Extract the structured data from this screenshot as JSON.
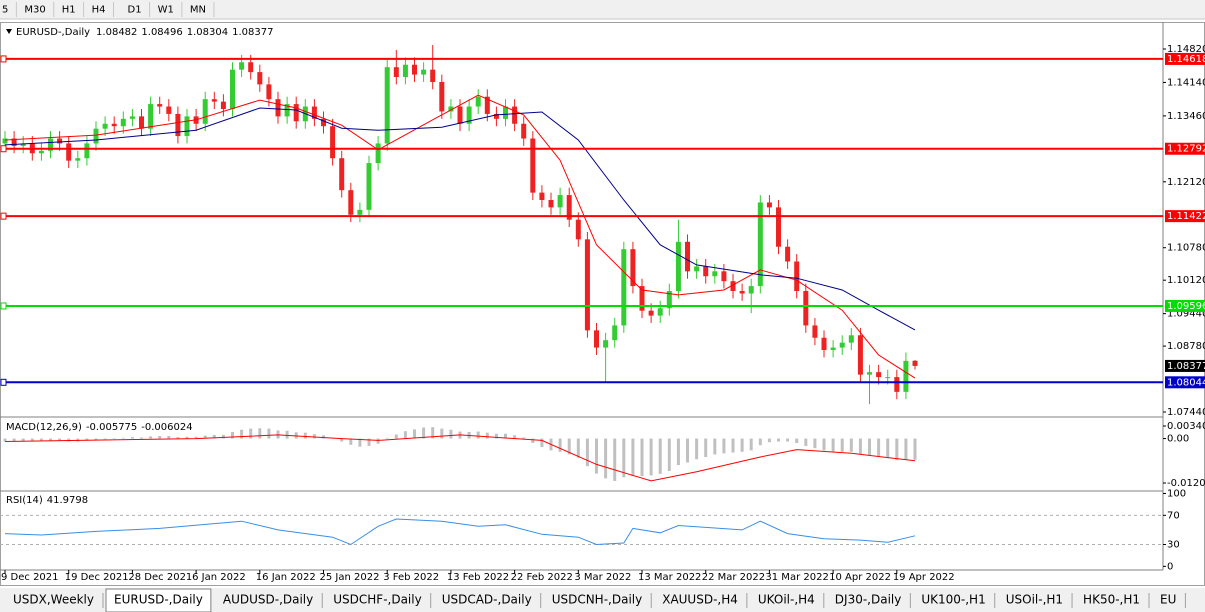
{
  "toolbar": {
    "timeframes": [
      "5",
      "M30",
      "H1",
      "H4",
      "D1",
      "W1",
      "MN"
    ]
  },
  "chart_data": [
    {
      "type": "candlestick",
      "symbol": "EURUSD-,Daily",
      "xlim": [
        -0.55,
        127.25
      ],
      "xticks": [
        {
          "value": 0,
          "label": "9 Dec 2021"
        },
        {
          "value": 7,
          "label": "19 Dec 2021"
        },
        {
          "value": 14,
          "label": "28 Dec 2021"
        },
        {
          "value": 21,
          "label": "6 Jan 2022"
        },
        {
          "value": 28,
          "label": "16 Jan 2022"
        },
        {
          "value": 35,
          "label": "25 Jan 2022"
        },
        {
          "value": 42,
          "label": "3 Feb 2022"
        },
        {
          "value": 49,
          "label": "13 Feb 2022"
        },
        {
          "value": 56,
          "label": "22 Feb 2022"
        },
        {
          "value": 63,
          "label": "3 Mar 2022"
        },
        {
          "value": 70,
          "label": "13 Mar 2022"
        },
        {
          "value": 77,
          "label": "22 Mar 2022"
        },
        {
          "value": 84,
          "label": "31 Mar 2022"
        },
        {
          "value": 91,
          "label": "10 Apr 2022"
        },
        {
          "value": 98,
          "label": "19 Apr 2022"
        }
      ],
      "ylim": [
        1.07359,
        1.15328
      ],
      "yticks": [
        {
          "value": 1.1482,
          "label": "1.14820"
        },
        {
          "value": 1.1414,
          "label": "1.14140"
        },
        {
          "value": 1.1346,
          "label": "1.13460"
        },
        {
          "value": 1.1212,
          "label": "1.12120"
        },
        {
          "value": 1.1078,
          "label": "1.10780"
        },
        {
          "value": 1.1012,
          "label": "1.10120"
        },
        {
          "value": 1.0944,
          "label": "1.09440"
        },
        {
          "value": 1.0878,
          "label": "1.08780"
        },
        {
          "value": 1.0744,
          "label": "1.07440"
        }
      ],
      "up_color": "#33cc33",
      "down_color": "#ee2222",
      "open": [
        1.129,
        1.13,
        1.1285,
        1.129,
        1.127,
        1.1275,
        1.13,
        1.129,
        1.1255,
        1.126,
        1.129,
        1.132,
        1.133,
        1.1325,
        1.134,
        1.1345,
        1.132,
        1.137,
        1.1365,
        1.135,
        1.1305,
        1.1345,
        1.133,
        1.138,
        1.1375,
        1.136,
        1.144,
        1.1455,
        1.1435,
        1.141,
        1.138,
        1.1345,
        1.137,
        1.1335,
        1.1365,
        1.134,
        1.1325,
        1.126,
        1.1195,
        1.1145,
        1.1155,
        1.125,
        1.129,
        1.1445,
        1.1425,
        1.145,
        1.143,
        1.144,
        1.1415,
        1.1355,
        1.1365,
        1.133,
        1.1365,
        1.1385,
        1.135,
        1.134,
        1.1365,
        1.133,
        1.13,
        1.119,
        1.1175,
        1.116,
        1.1185,
        1.1135,
        1.1095,
        1.091,
        1.0875,
        1.089,
        1.092,
        1.1075,
        1.1,
        1.095,
        1.094,
        1.0955,
        1.099,
        1.109,
        1.103,
        1.104,
        1.102,
        1.103,
        1.101,
        1.099,
        1.0985,
        1.1,
        1.117,
        1.116,
        1.108,
        1.105,
        1.099,
        1.092,
        1.0895,
        1.087,
        1.0875,
        1.0885,
        1.09,
        1.082,
        1.0825,
        1.0815,
        1.0815,
        1.0785,
        1.08482
      ],
      "high": [
        1.1315,
        1.1315,
        1.1305,
        1.1305,
        1.129,
        1.1315,
        1.1315,
        1.1305,
        1.1275,
        1.1305,
        1.1335,
        1.1345,
        1.1345,
        1.1355,
        1.136,
        1.136,
        1.1385,
        1.1385,
        1.138,
        1.1365,
        1.136,
        1.136,
        1.1395,
        1.1395,
        1.139,
        1.1455,
        1.147,
        1.147,
        1.145,
        1.1425,
        1.1395,
        1.1385,
        1.1385,
        1.138,
        1.138,
        1.1355,
        1.134,
        1.1275,
        1.121,
        1.117,
        1.1265,
        1.1305,
        1.146,
        1.148,
        1.1465,
        1.1465,
        1.1455,
        1.149,
        1.143,
        1.138,
        1.138,
        1.138,
        1.14,
        1.14,
        1.1365,
        1.138,
        1.138,
        1.1345,
        1.1315,
        1.1205,
        1.119,
        1.12,
        1.12,
        1.115,
        1.111,
        1.0925,
        1.0905,
        1.0935,
        1.109,
        1.109,
        1.1015,
        1.0965,
        1.097,
        1.1005,
        1.1135,
        1.1105,
        1.1055,
        1.1055,
        1.1045,
        1.1045,
        1.1025,
        1.1005,
        1.1015,
        1.1185,
        1.1185,
        1.1175,
        1.1095,
        1.1065,
        1.1005,
        1.0935,
        1.091,
        1.089,
        1.09,
        1.0915,
        1.0915,
        1.084,
        1.084,
        1.083,
        1.083,
        1.0865,
        1.08496
      ],
      "low": [
        1.1275,
        1.127,
        1.127,
        1.1255,
        1.1255,
        1.126,
        1.1275,
        1.124,
        1.124,
        1.1245,
        1.1275,
        1.1305,
        1.131,
        1.131,
        1.1325,
        1.1305,
        1.1305,
        1.135,
        1.1335,
        1.129,
        1.129,
        1.1315,
        1.1315,
        1.136,
        1.1345,
        1.1345,
        1.1425,
        1.142,
        1.1395,
        1.1365,
        1.133,
        1.133,
        1.132,
        1.132,
        1.1325,
        1.131,
        1.1245,
        1.118,
        1.113,
        1.113,
        1.114,
        1.1235,
        1.1275,
        1.141,
        1.141,
        1.1415,
        1.1415,
        1.14,
        1.134,
        1.134,
        1.1315,
        1.1315,
        1.135,
        1.1335,
        1.1325,
        1.1325,
        1.1315,
        1.1285,
        1.1175,
        1.116,
        1.1145,
        1.1145,
        1.112,
        1.108,
        1.0895,
        1.086,
        1.0805,
        1.0875,
        1.0905,
        1.0985,
        1.0935,
        1.0925,
        1.0925,
        1.094,
        1.0975,
        1.1015,
        1.1015,
        1.1005,
        1.1005,
        1.0995,
        1.0975,
        1.097,
        1.0945,
        1.0985,
        1.1145,
        1.1065,
        1.1035,
        1.0975,
        1.0905,
        1.088,
        1.0855,
        1.0855,
        1.086,
        1.087,
        1.0805,
        1.076,
        1.08,
        1.08,
        1.077,
        1.077,
        1.08304
      ],
      "close": [
        1.13,
        1.1285,
        1.129,
        1.127,
        1.1275,
        1.13,
        1.129,
        1.1255,
        1.126,
        1.129,
        1.132,
        1.133,
        1.1325,
        1.134,
        1.1345,
        1.132,
        1.137,
        1.1365,
        1.135,
        1.1305,
        1.1345,
        1.133,
        1.138,
        1.1375,
        1.136,
        1.144,
        1.1455,
        1.1435,
        1.141,
        1.138,
        1.1345,
        1.137,
        1.1335,
        1.1365,
        1.134,
        1.1325,
        1.126,
        1.1195,
        1.1145,
        1.1155,
        1.125,
        1.129,
        1.1445,
        1.1425,
        1.145,
        1.143,
        1.144,
        1.1415,
        1.1355,
        1.1365,
        1.133,
        1.1365,
        1.1385,
        1.135,
        1.134,
        1.1365,
        1.133,
        1.13,
        1.119,
        1.1175,
        1.116,
        1.1185,
        1.1135,
        1.1095,
        1.091,
        1.0875,
        1.089,
        1.092,
        1.1075,
        1.1,
        1.095,
        1.094,
        1.0955,
        1.099,
        1.109,
        1.103,
        1.104,
        1.102,
        1.103,
        1.101,
        1.099,
        1.0985,
        1.1,
        1.117,
        1.116,
        1.108,
        1.105,
        1.099,
        1.092,
        1.0895,
        1.087,
        1.0875,
        1.0885,
        1.09,
        1.082,
        1.0825,
        1.0815,
        1.0815,
        1.0785,
        1.0848,
        1.08377
      ],
      "levels": [
        {
          "value": 1.14618,
          "color": "#ff0000"
        },
        {
          "value": 1.12792,
          "color": "#ff0000"
        },
        {
          "value": 1.11422,
          "color": "#ff0000"
        },
        {
          "value": 1.09596,
          "color": "#00dd00"
        },
        {
          "value": 1.08044,
          "color": "#0000cc"
        }
      ],
      "moving_averages": [
        {
          "color": "#ff0000",
          "x": [
            0,
            10,
            21,
            28,
            32,
            37,
            41,
            47,
            52,
            57,
            61,
            65,
            70,
            74,
            79,
            83,
            87,
            92,
            96,
            100
          ],
          "values": [
            1.1297,
            1.1307,
            1.1338,
            1.1378,
            1.1362,
            1.1327,
            1.1277,
            1.1338,
            1.1388,
            1.1348,
            1.1256,
            1.1084,
            1.0992,
            1.0982,
            1.0992,
            1.1033,
            1.1012,
            1.0951,
            1.086,
            1.0813
          ]
        },
        {
          "color": "#00008b",
          "x": [
            0,
            10,
            21,
            28,
            32,
            37,
            41,
            48,
            54,
            59,
            63,
            68,
            72,
            76,
            83,
            87,
            92,
            96,
            100
          ],
          "values": [
            1.1287,
            1.1297,
            1.1317,
            1.1362,
            1.1358,
            1.1321,
            1.1317,
            1.1323,
            1.1348,
            1.1354,
            1.1297,
            1.1175,
            1.1084,
            1.1043,
            1.1023,
            1.1016,
            1.0992,
            1.0951,
            1.0911
          ]
        }
      ]
    },
    {
      "type": "macd",
      "name": "MACD(12,26,9)",
      "ylim": [
        -0.01396,
        0.00558
      ],
      "yticks": [
        0.003408,
        {
          "value": 0,
          "label": "0.00"
        },
        -0.012058
      ],
      "color": "#c0c0c0",
      "values": [
        -0.0008,
        -0.0008,
        -0.0007,
        -0.0008,
        -0.0007,
        -0.0006,
        -0.0006,
        -0.0008,
        -0.0008,
        -0.0006,
        -0.0004,
        -0.0002,
        -0.0001,
        0.0002,
        0.0004,
        0.0003,
        0.0006,
        0.0007,
        0.0007,
        0.0004,
        0.0005,
        0.0005,
        0.0008,
        0.001,
        0.001,
        0.0018,
        0.0024,
        0.0027,
        0.0028,
        0.0027,
        0.0022,
        0.0021,
        0.0017,
        0.0016,
        0.0012,
        0.0009,
        0.0002,
        -0.0008,
        -0.0017,
        -0.0022,
        -0.002,
        -0.0014,
        0.0002,
        0.0011,
        0.002,
        0.0025,
        0.003,
        0.0031,
        0.0027,
        0.0024,
        0.0019,
        0.0018,
        0.0019,
        0.0016,
        0.0013,
        0.0013,
        0.0009,
        0.0003,
        -0.0012,
        -0.0023,
        -0.0032,
        -0.0036,
        -0.0043,
        -0.0052,
        -0.0075,
        -0.0095,
        -0.0108,
        -0.0115,
        -0.0105,
        -0.0102,
        -0.0102,
        -0.01,
        -0.0096,
        -0.0088,
        -0.0072,
        -0.0065,
        -0.0056,
        -0.005,
        -0.0043,
        -0.004,
        -0.0038,
        -0.0036,
        -0.0032,
        -0.0018,
        -0.001,
        -0.0008,
        -0.0008,
        -0.0012,
        -0.002,
        -0.0026,
        -0.0032,
        -0.0035,
        -0.0036,
        -0.0036,
        -0.0042,
        -0.0046,
        -0.005,
        -0.0053,
        -0.0058,
        -0.0058,
        -0.005775
      ],
      "signal": {
        "color": "#ff0000",
        "x": [
          0,
          21,
          30,
          37,
          41,
          50,
          59,
          65,
          71,
          76,
          83,
          87,
          93,
          100
        ],
        "values": [
          -0.0008,
          0.0,
          0.001,
          0.0,
          -0.0005,
          0.001,
          -0.0005,
          -0.007,
          -0.0115,
          -0.009,
          -0.005,
          -0.003,
          -0.004,
          -0.006024
        ]
      }
    },
    {
      "type": "line",
      "name": "RSI(14)",
      "ylim": [
        -5,
        102
      ],
      "yticks": [
        100,
        70,
        30,
        0
      ],
      "levels": [
        70,
        30
      ],
      "color": "#3a8ee6",
      "x": [
        0,
        4,
        10,
        17,
        26,
        30,
        36,
        38,
        41,
        43,
        48,
        52,
        55,
        59,
        63,
        65,
        68,
        69,
        72,
        74,
        81,
        83,
        86,
        90,
        94,
        97,
        100
      ],
      "values": [
        45,
        43,
        48,
        52,
        62,
        50,
        40,
        30,
        55,
        65,
        62,
        55,
        57,
        44,
        40,
        30,
        32,
        52,
        46,
        56,
        50,
        62,
        45,
        38,
        36,
        33,
        41.9798
      ]
    }
  ],
  "tabs": [
    "USDX,Weekly",
    "EURUSD-,Daily",
    "AUDUSD-,Daily",
    "USDCHF-,Daily",
    "USDCAD-,Daily",
    "USDCNH-,Daily",
    "XAUUSD-,H4",
    "UKOil-,H4",
    "DJ30-,Daily",
    "UK100-,H1",
    "USOil-,H1",
    "HK50-,H1",
    "EU"
  ],
  "active_tab": 1
}
